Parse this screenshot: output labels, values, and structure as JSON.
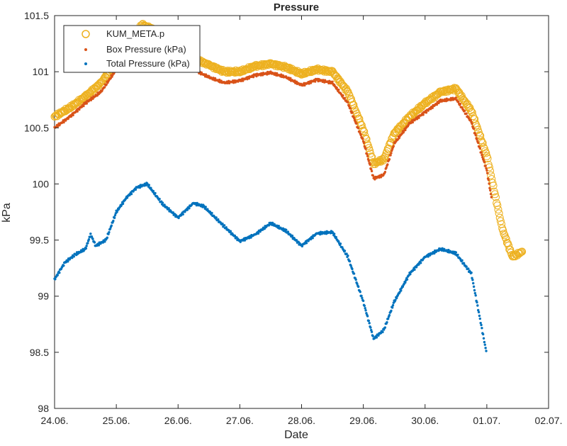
{
  "chart_data": {
    "type": "scatter",
    "title": "Pressure",
    "xlabel": "Date",
    "ylabel": "kPa",
    "xlim": [
      "24.06.",
      "02.07."
    ],
    "ylim": [
      98,
      101.5
    ],
    "x_ticks": [
      "24.06.",
      "25.06.",
      "26.06.",
      "27.06.",
      "28.06.",
      "29.06.",
      "30.06.",
      "01.07.",
      "02.07."
    ],
    "y_ticks": [
      "98",
      "98.5",
      "99",
      "99.5",
      "100",
      "100.5",
      "101",
      "101.5"
    ],
    "grid": false,
    "legend_position": "top-left",
    "series": [
      {
        "name": "KUM_META.p",
        "color": "#EDB120",
        "marker": "open-circle",
        "points": [
          [
            "24.06. 00:00",
            100.6
          ],
          [
            "24.06. 06:00",
            100.68
          ],
          [
            "24.06. 12:00",
            100.78
          ],
          [
            "24.06. 18:00",
            100.9
          ],
          [
            "25.06. 00:00",
            101.08
          ],
          [
            "25.06. 06:00",
            101.28
          ],
          [
            "25.06. 10:00",
            101.42
          ],
          [
            "25.06. 14:00",
            101.38
          ],
          [
            "25.06. 18:00",
            101.28
          ],
          [
            "26.06. 00:00",
            101.2
          ],
          [
            "26.06. 06:00",
            101.12
          ],
          [
            "26.06. 12:00",
            101.06
          ],
          [
            "26.06. 18:00",
            101.0
          ],
          [
            "27.06. 00:00",
            101.0
          ],
          [
            "27.06. 06:00",
            101.05
          ],
          [
            "27.06. 12:00",
            101.07
          ],
          [
            "27.06. 18:00",
            101.04
          ],
          [
            "28.06. 00:00",
            100.98
          ],
          [
            "28.06. 06:00",
            101.02
          ],
          [
            "28.06. 12:00",
            101.0
          ],
          [
            "28.06. 18:00",
            100.82
          ],
          [
            "29.06. 00:00",
            100.48
          ],
          [
            "29.06. 04:00",
            100.18
          ],
          [
            "29.06. 08:00",
            100.22
          ],
          [
            "29.06. 12:00",
            100.45
          ],
          [
            "29.06. 18:00",
            100.6
          ],
          [
            "30.06. 00:00",
            100.72
          ],
          [
            "30.06. 06:00",
            100.82
          ],
          [
            "30.06. 12:00",
            100.85
          ],
          [
            "30.06. 18:00",
            100.65
          ],
          [
            "01.07. 00:00",
            100.25
          ],
          [
            "01.07. 06:00",
            99.6
          ],
          [
            "01.07. 10:00",
            99.35
          ],
          [
            "01.07. 14:00",
            99.4
          ]
        ]
      },
      {
        "name": "Box Pressure (kPa)",
        "color": "#D95319",
        "marker": "dot",
        "points": [
          [
            "24.06. 00:00",
            100.5
          ],
          [
            "24.06. 06:00",
            100.6
          ],
          [
            "24.06. 12:00",
            100.72
          ],
          [
            "24.06. 18:00",
            100.82
          ],
          [
            "25.06. 00:00",
            101.02
          ],
          [
            "25.06. 06:00",
            101.22
          ],
          [
            "25.06. 10:00",
            101.35
          ],
          [
            "25.06. 14:00",
            101.3
          ],
          [
            "25.06. 18:00",
            101.2
          ],
          [
            "26.06. 00:00",
            101.1
          ],
          [
            "26.06. 06:00",
            101.02
          ],
          [
            "26.06. 12:00",
            100.95
          ],
          [
            "26.06. 18:00",
            100.9
          ],
          [
            "27.06. 00:00",
            100.92
          ],
          [
            "27.06. 06:00",
            100.97
          ],
          [
            "27.06. 12:00",
            100.99
          ],
          [
            "27.06. 18:00",
            100.95
          ],
          [
            "28.06. 00:00",
            100.88
          ],
          [
            "28.06. 06:00",
            100.93
          ],
          [
            "28.06. 12:00",
            100.9
          ],
          [
            "28.06. 18:00",
            100.72
          ],
          [
            "29.06. 00:00",
            100.38
          ],
          [
            "29.06. 04:00",
            100.05
          ],
          [
            "29.06. 08:00",
            100.08
          ],
          [
            "29.06. 12:00",
            100.36
          ],
          [
            "29.06. 18:00",
            100.54
          ],
          [
            "30.06. 00:00",
            100.64
          ],
          [
            "30.06. 06:00",
            100.74
          ],
          [
            "30.06. 12:00",
            100.76
          ],
          [
            "30.06. 18:00",
            100.55
          ],
          [
            "01.07. 00:00",
            100.12
          ],
          [
            "01.07. 02:00",
            99.85
          ]
        ]
      },
      {
        "name": "Total Pressure (kPa)",
        "color": "#0072BD",
        "marker": "dot",
        "points": [
          [
            "24.06. 00:00",
            99.15
          ],
          [
            "24.06. 04:00",
            99.3
          ],
          [
            "24.06. 08:00",
            99.37
          ],
          [
            "24.06. 12:00",
            99.42
          ],
          [
            "24.06. 14:00",
            99.55
          ],
          [
            "24.06. 16:00",
            99.45
          ],
          [
            "24.06. 20:00",
            99.5
          ],
          [
            "25.06. 00:00",
            99.75
          ],
          [
            "25.06. 04:00",
            99.88
          ],
          [
            "25.06. 08:00",
            99.97
          ],
          [
            "25.06. 12:00",
            100.0
          ],
          [
            "25.06. 18:00",
            99.82
          ],
          [
            "26.06. 00:00",
            99.7
          ],
          [
            "26.06. 06:00",
            99.83
          ],
          [
            "26.06. 10:00",
            99.8
          ],
          [
            "26.06. 18:00",
            99.62
          ],
          [
            "27.06. 00:00",
            99.49
          ],
          [
            "27.06. 06:00",
            99.55
          ],
          [
            "27.06. 12:00",
            99.65
          ],
          [
            "27.06. 18:00",
            99.58
          ],
          [
            "28.06. 00:00",
            99.45
          ],
          [
            "28.06. 06:00",
            99.56
          ],
          [
            "28.06. 12:00",
            99.57
          ],
          [
            "28.06. 18:00",
            99.35
          ],
          [
            "29.06. 00:00",
            98.95
          ],
          [
            "29.06. 04:00",
            98.62
          ],
          [
            "29.06. 08:00",
            98.7
          ],
          [
            "29.06. 12:00",
            98.95
          ],
          [
            "29.06. 18:00",
            99.2
          ],
          [
            "30.06. 00:00",
            99.35
          ],
          [
            "30.06. 06:00",
            99.42
          ],
          [
            "30.06. 12:00",
            99.38
          ],
          [
            "30.06. 18:00",
            99.2
          ],
          [
            "01.07. 00:00",
            98.48
          ]
        ]
      }
    ]
  }
}
